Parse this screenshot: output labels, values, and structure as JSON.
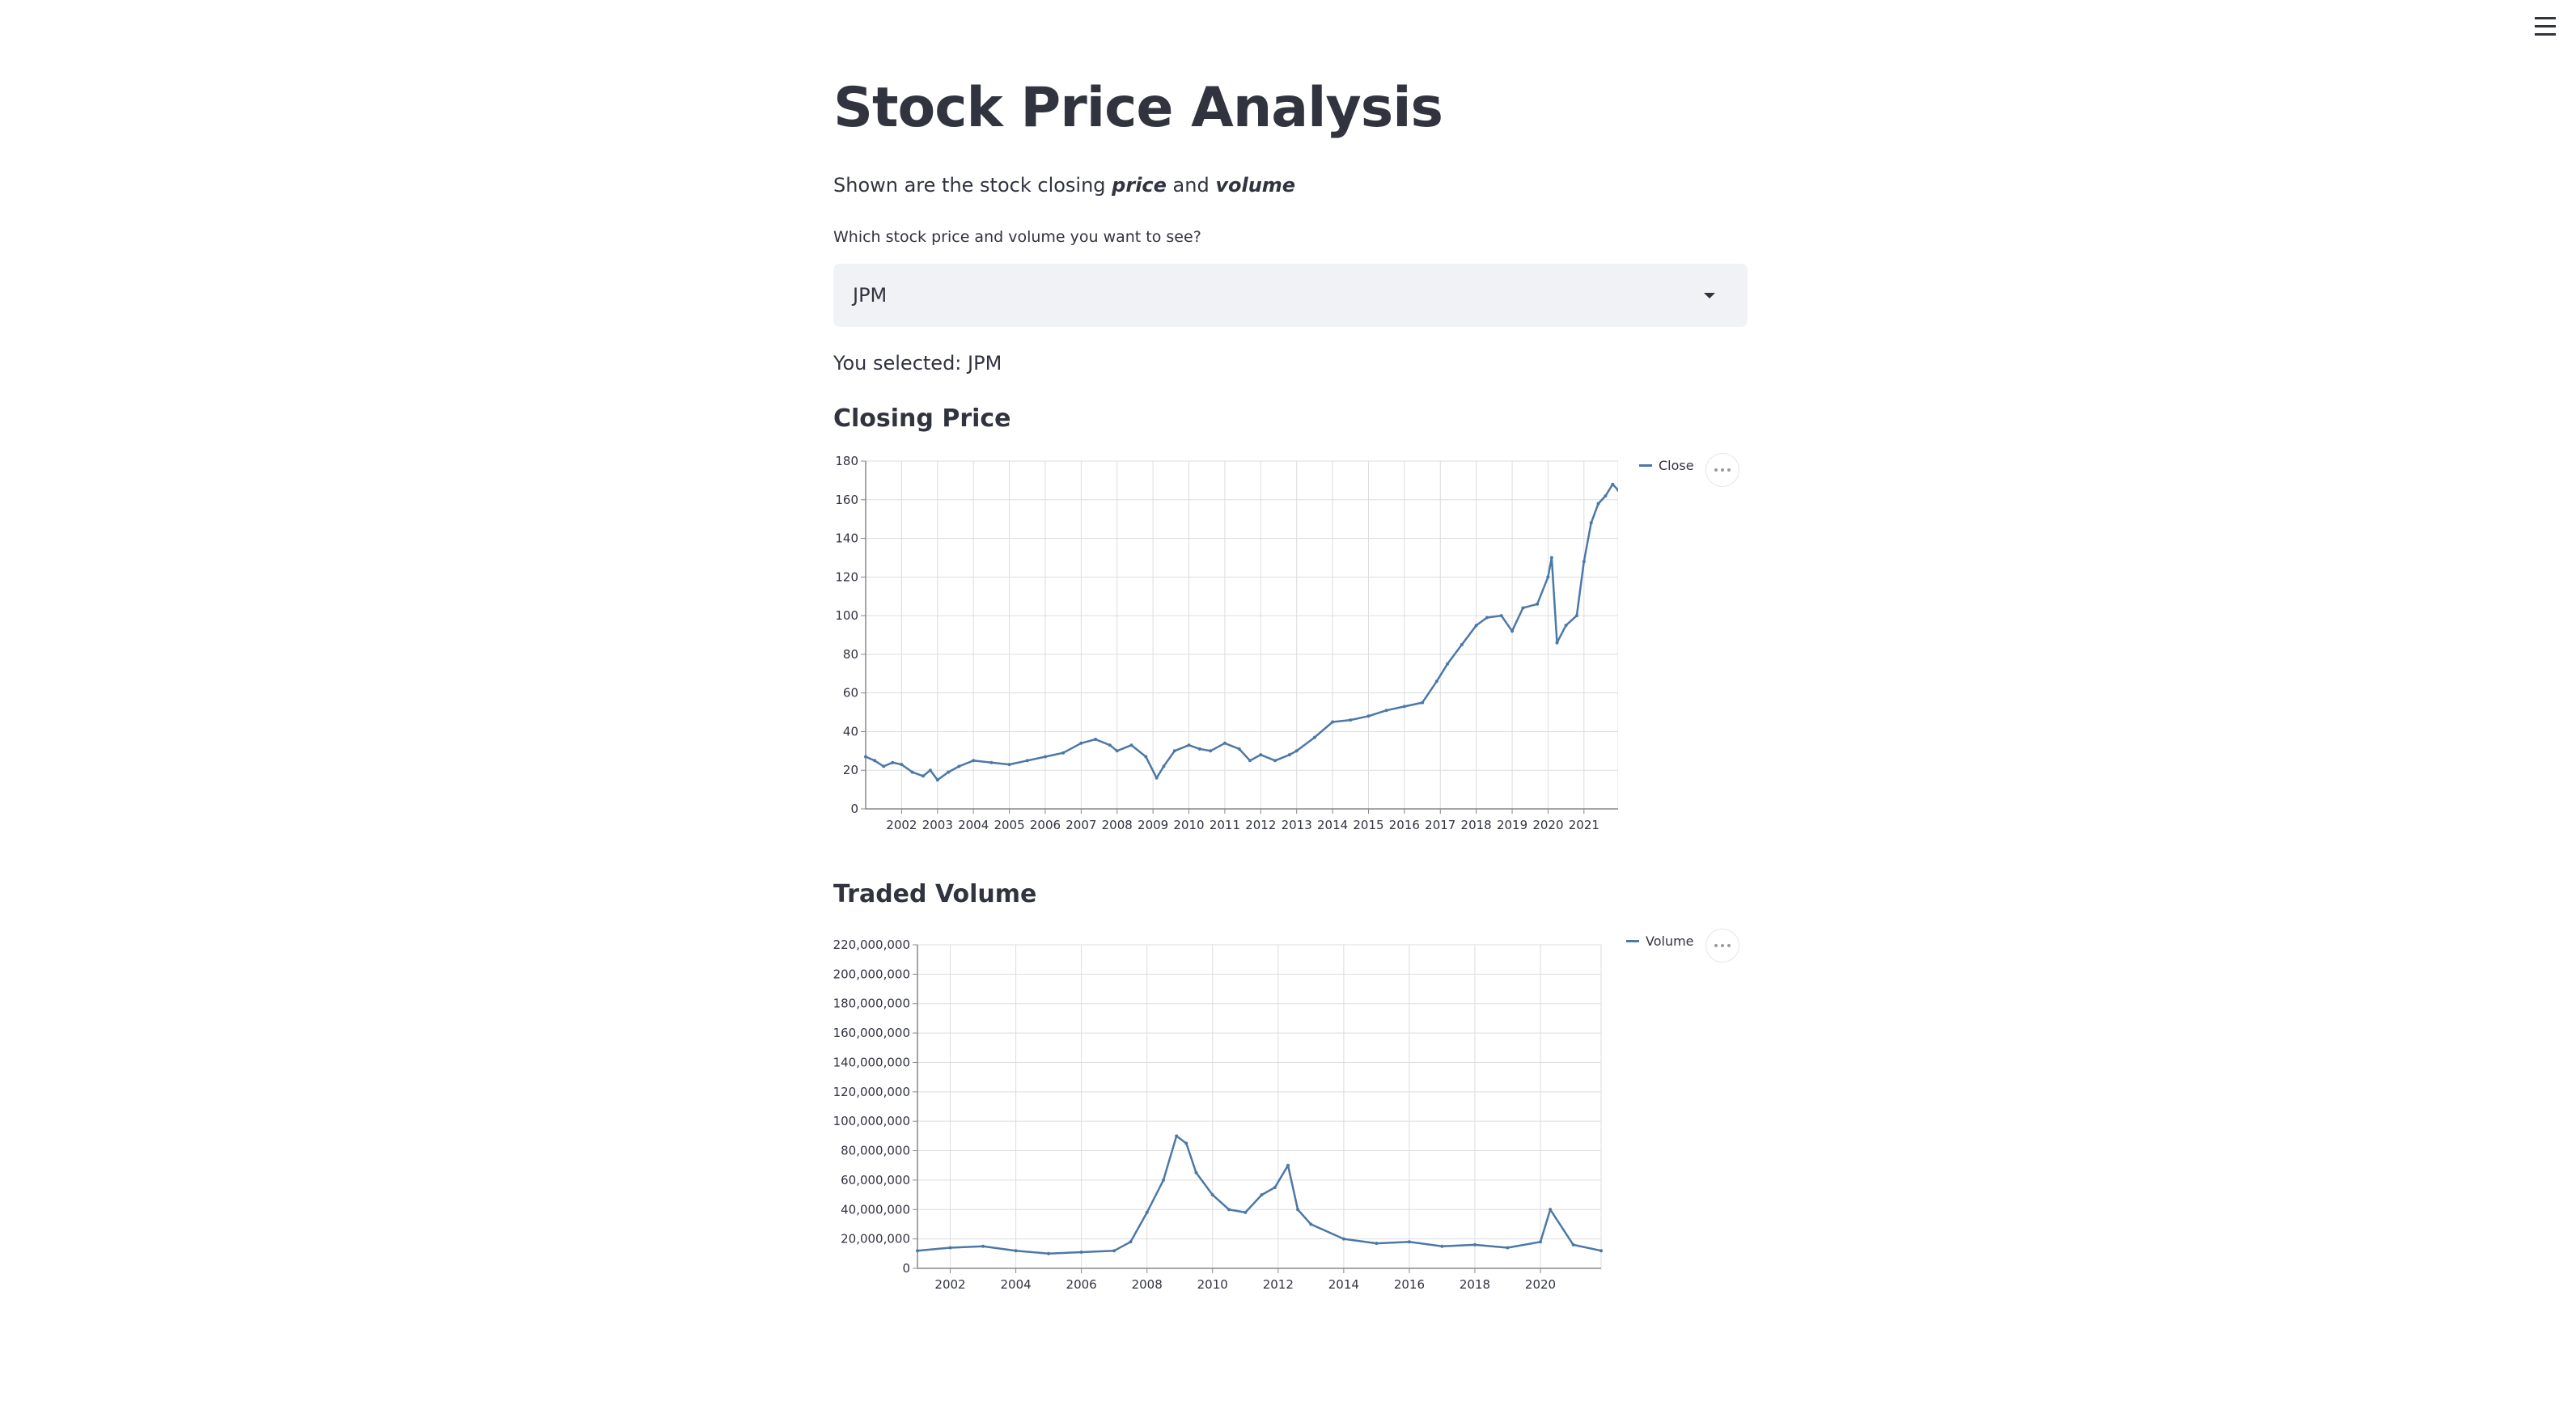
{
  "page": {
    "title": "Stock Price Analysis",
    "description_prefix": "Shown are the stock closing ",
    "description_em1": "price",
    "description_mid": " and ",
    "description_em2": "volume"
  },
  "select": {
    "label": "Which stock price and volume you want to see?",
    "value": "JPM"
  },
  "selected_text": "You selected: JPM",
  "sections": {
    "price_header": "Closing Price",
    "volume_header": "Traded Volume"
  },
  "colors": {
    "series": "#4c78a8",
    "grid": "#dddddd",
    "axis": "#888888"
  },
  "icons": {
    "menu": "hamburger-icon",
    "dropdown": "caret-down-icon",
    "chart_actions": "ellipsis-icon"
  },
  "chart_data": [
    {
      "type": "line",
      "title": "",
      "xlabel": "",
      "ylabel": "",
      "legend": "top-right",
      "grid": true,
      "xlim": [
        2001.0,
        2021.95
      ],
      "ylim": [
        0,
        180
      ],
      "x_ticks": [
        "2002",
        "2003",
        "2004",
        "2005",
        "2006",
        "2007",
        "2008",
        "2009",
        "2010",
        "2011",
        "2012",
        "2013",
        "2014",
        "2015",
        "2016",
        "2017",
        "2018",
        "2019",
        "2020",
        "2021"
      ],
      "y_ticks": [
        "0",
        "20",
        "40",
        "60",
        "80",
        "100",
        "120",
        "140",
        "160",
        "180"
      ],
      "series": [
        {
          "name": "Close",
          "x": [
            2001.0,
            2001.25,
            2001.5,
            2001.75,
            2002.0,
            2002.3,
            2002.6,
            2002.8,
            2003.0,
            2003.3,
            2003.6,
            2004.0,
            2004.5,
            2005.0,
            2005.5,
            2006.0,
            2006.5,
            2007.0,
            2007.4,
            2007.8,
            2008.0,
            2008.4,
            2008.8,
            2009.1,
            2009.3,
            2009.6,
            2010.0,
            2010.3,
            2010.6,
            2011.0,
            2011.4,
            2011.7,
            2012.0,
            2012.4,
            2012.8,
            2013.0,
            2013.5,
            2014.0,
            2014.5,
            2015.0,
            2015.5,
            2016.0,
            2016.5,
            2016.9,
            2017.2,
            2017.6,
            2018.0,
            2018.3,
            2018.7,
            2019.0,
            2019.3,
            2019.7,
            2020.0,
            2020.1,
            2020.25,
            2020.5,
            2020.8,
            2021.0,
            2021.2,
            2021.4,
            2021.6,
            2021.8,
            2021.95
          ],
          "values": [
            27,
            25,
            22,
            24,
            23,
            19,
            17,
            20,
            15,
            19,
            22,
            25,
            24,
            23,
            25,
            27,
            29,
            34,
            36,
            33,
            30,
            33,
            27,
            16,
            22,
            30,
            33,
            31,
            30,
            34,
            31,
            25,
            28,
            25,
            28,
            30,
            37,
            45,
            46,
            48,
            51,
            53,
            55,
            66,
            75,
            85,
            95,
            99,
            100,
            92,
            104,
            106,
            120,
            130,
            86,
            95,
            100,
            128,
            148,
            158,
            162,
            168,
            165
          ]
        }
      ]
    },
    {
      "type": "line",
      "title": "",
      "xlabel": "",
      "ylabel": "",
      "legend": "top-right",
      "grid": true,
      "xlim": [
        2001.0,
        2021.85
      ],
      "ylim": [
        0,
        220000000
      ],
      "x_ticks": [
        "2002",
        "2004",
        "2006",
        "2008",
        "2010",
        "2012",
        "2014",
        "2016",
        "2018",
        "2020"
      ],
      "y_ticks": [
        "0",
        "20,000,000",
        "40,000,000",
        "60,000,000",
        "80,000,000",
        "100,000,000",
        "120,000,000",
        "140,000,000",
        "160,000,000",
        "180,000,000",
        "200,000,000",
        "220,000,000"
      ],
      "series": [
        {
          "name": "Volume",
          "x": [
            2001.0,
            2002.0,
            2003.0,
            2004.0,
            2005.0,
            2006.0,
            2007.0,
            2007.5,
            2008.0,
            2008.5,
            2008.9,
            2009.2,
            2009.5,
            2010.0,
            2010.5,
            2011.0,
            2011.5,
            2011.9,
            2012.3,
            2012.6,
            2013.0,
            2014.0,
            2015.0,
            2016.0,
            2017.0,
            2018.0,
            2019.0,
            2020.0,
            2020.3,
            2021.0,
            2021.85
          ],
          "values": [
            12000000,
            14000000,
            15000000,
            12000000,
            10000000,
            11000000,
            12000000,
            18000000,
            38000000,
            60000000,
            90000000,
            85000000,
            65000000,
            50000000,
            40000000,
            38000000,
            50000000,
            55000000,
            70000000,
            40000000,
            30000000,
            20000000,
            17000000,
            18000000,
            15000000,
            16000000,
            14000000,
            18000000,
            40000000,
            16000000,
            12000000
          ]
        }
      ]
    }
  ]
}
